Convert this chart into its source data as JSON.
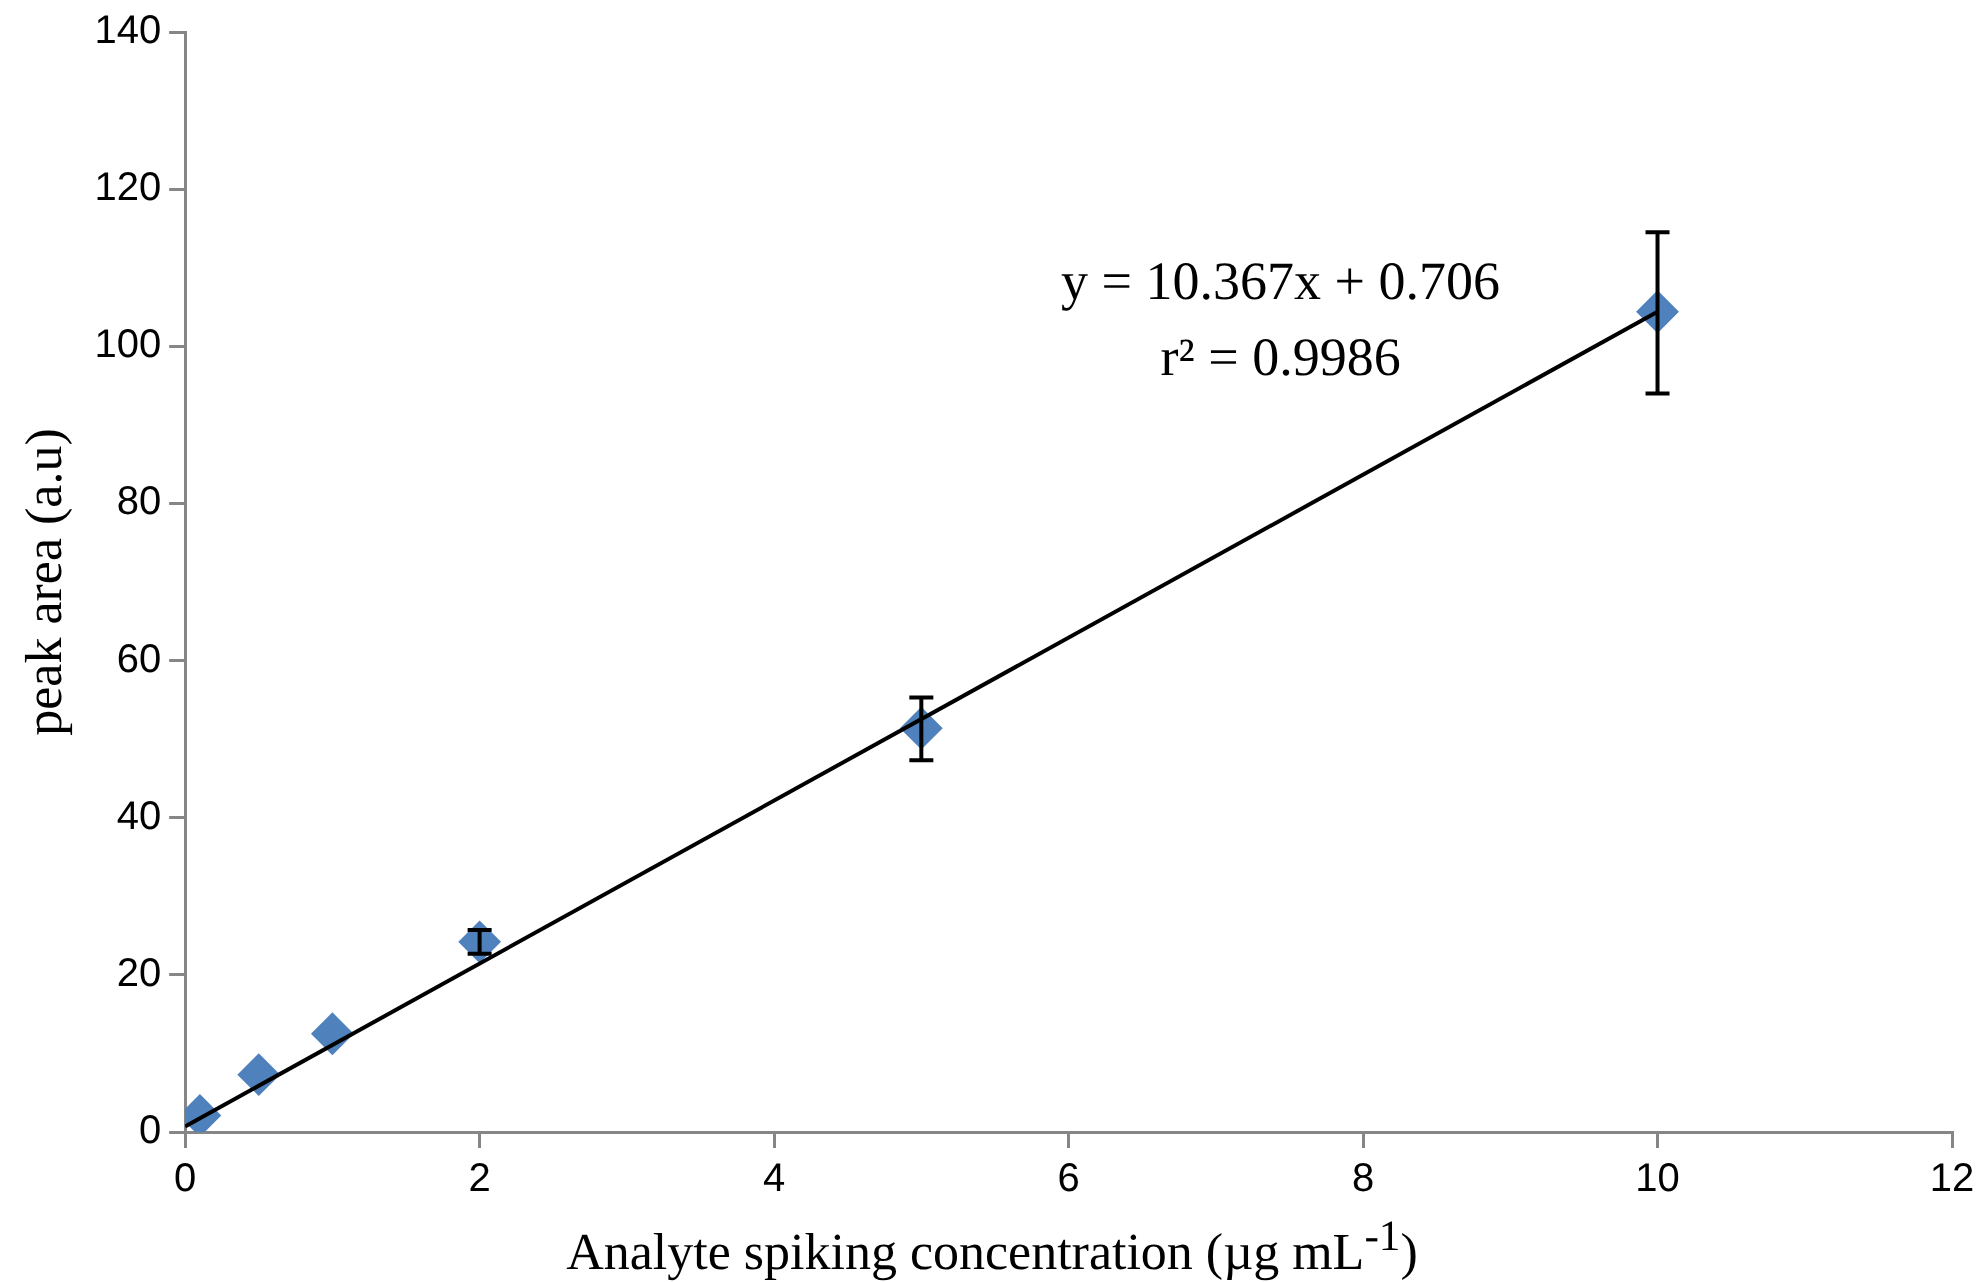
{
  "chart_data": {
    "type": "scatter",
    "xlabel": "Analyte spiking concentration (µg mL$^{-1}$)",
    "ylabel": "peak area (a.u)",
    "annotations": [
      "y = 10.367x + 0.706",
      "r² = 0.9986"
    ],
    "xlim": [
      0,
      12
    ],
    "xticks": [
      0,
      2,
      4,
      6,
      8,
      10,
      12
    ],
    "ylim": [
      0,
      140
    ],
    "yticks": [
      0,
      20,
      40,
      60,
      80,
      100,
      120,
      140
    ],
    "grid": false,
    "legend": false,
    "series": [
      {
        "color": "#4f81bd",
        "marker": "diamond",
        "x": [
          0.1,
          0.5,
          1,
          2,
          5,
          10
        ],
        "values": [
          2.1,
          7.3,
          12.5,
          24.2,
          51.4,
          104.4
        ],
        "errors": [
          null,
          null,
          null,
          1.5,
          [
            47.3,
            55.3
          ],
          [
            94.0,
            114.5
          ]
        ]
      },
      {
        "type": "line",
        "marker": "none",
        "color": "#000000",
        "x": [
          0,
          10
        ],
        "values": [
          0.7,
          104.4
        ]
      }
    ]
  }
}
